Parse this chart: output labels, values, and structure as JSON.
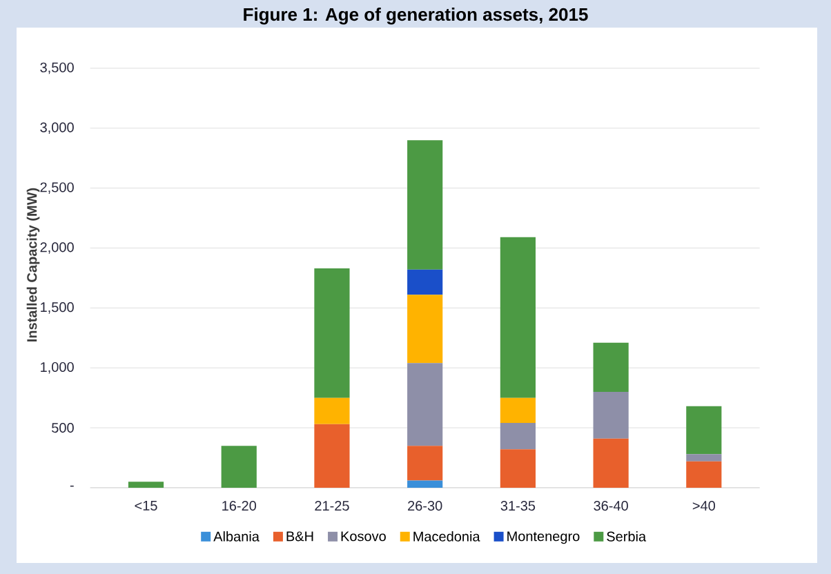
{
  "chart_data": {
    "type": "bar",
    "title": "Figure 1: Age of generation assets, 2015",
    "ylabel": "Installed Capacity (MW)",
    "categories": [
      "<15",
      "16-20",
      "21-25",
      "26-30",
      "31-35",
      "36-40",
      ">40"
    ],
    "series": [
      {
        "name": "Albania",
        "color": "#3a8fd9",
        "values": [
          0,
          0,
          0,
          60,
          0,
          0,
          0
        ]
      },
      {
        "name": "B&H",
        "color": "#e8602c",
        "values": [
          0,
          0,
          530,
          290,
          320,
          410,
          220
        ]
      },
      {
        "name": "Kosovo",
        "color": "#8e8fa8",
        "values": [
          0,
          0,
          0,
          690,
          220,
          390,
          60
        ]
      },
      {
        "name": "Macedonia",
        "color": "#ffb300",
        "values": [
          0,
          0,
          220,
          570,
          210,
          0,
          0
        ]
      },
      {
        "name": "Montenegro",
        "color": "#1a4fc9",
        "values": [
          0,
          0,
          0,
          210,
          0,
          0,
          0
        ]
      },
      {
        "name": "Serbia",
        "color": "#4c9a44",
        "values": [
          50,
          350,
          1080,
          1080,
          1340,
          410,
          400
        ]
      }
    ],
    "stacked": true,
    "ylim": [
      0,
      3500
    ],
    "yticks": [
      {
        "value": 0,
        "label": "-"
      },
      500,
      {
        "value": 1000,
        "label": "1,000"
      },
      {
        "value": 1500,
        "label": "1,500"
      },
      {
        "value": 2000,
        "label": "2,000"
      },
      {
        "value": 2500,
        "label": "2,500"
      },
      {
        "value": 3000,
        "label": "3,000"
      },
      {
        "value": 3500,
        "label": "3,500"
      }
    ],
    "grid": "y",
    "legend": "bottom"
  }
}
